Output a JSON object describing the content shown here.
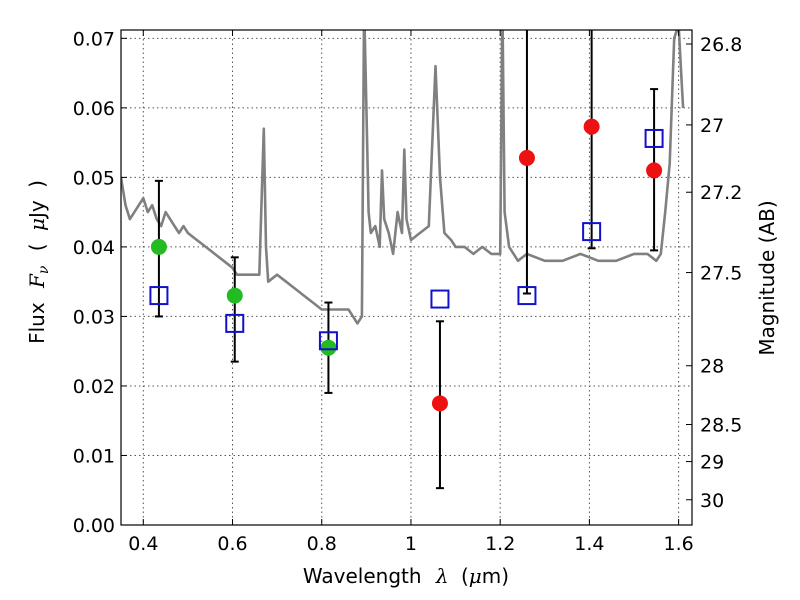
{
  "chart_data": {
    "type": "scatter",
    "title": "",
    "xlabel_parts": [
      "Wavelength",
      "λ",
      "(",
      "μ",
      "m)"
    ],
    "ylabel_parts": [
      "Flux",
      "F",
      "ν",
      "(",
      "μ",
      "Jy",
      ")"
    ],
    "right_ylabel": "Magnitude (AB)",
    "xlim": [
      0.35,
      1.63
    ],
    "ylim": [
      0.0,
      0.0712
    ],
    "grid": true,
    "x_ticks": [
      {
        "v": 0.4,
        "label": "0.4"
      },
      {
        "v": 0.6,
        "label": "0.6"
      },
      {
        "v": 0.8,
        "label": "0.8"
      },
      {
        "v": 1.0,
        "label": "1"
      },
      {
        "v": 1.2,
        "label": "1.2"
      },
      {
        "v": 1.4,
        "label": "1.4"
      },
      {
        "v": 1.6,
        "label": "1.6"
      }
    ],
    "y_ticks": [
      {
        "v": 0.0,
        "label": "0.00"
      },
      {
        "v": 0.01,
        "label": "0.01"
      },
      {
        "v": 0.02,
        "label": "0.02"
      },
      {
        "v": 0.03,
        "label": "0.03"
      },
      {
        "v": 0.04,
        "label": "0.04"
      },
      {
        "v": 0.05,
        "label": "0.05"
      },
      {
        "v": 0.06,
        "label": "0.06"
      },
      {
        "v": 0.07,
        "label": "0.07"
      }
    ],
    "mag_ticks": [
      {
        "v": 26.8,
        "label": "26.8"
      },
      {
        "v": 27.0,
        "label": "27"
      },
      {
        "v": 27.2,
        "label": "27.2"
      },
      {
        "v": 27.5,
        "label": "27.5"
      },
      {
        "v": 28.0,
        "label": "28"
      },
      {
        "v": 28.5,
        "label": "28.5"
      },
      {
        "v": 29.0,
        "label": "29"
      },
      {
        "v": 30.0,
        "label": "30"
      }
    ],
    "series": [
      {
        "name": "template-spectrum",
        "kind": "line",
        "color": "#808080",
        "x": [
          0.35,
          0.36,
          0.37,
          0.38,
          0.39,
          0.4,
          0.41,
          0.42,
          0.43,
          0.44,
          0.45,
          0.46,
          0.47,
          0.48,
          0.49,
          0.5,
          0.52,
          0.54,
          0.56,
          0.58,
          0.6,
          0.61,
          0.62,
          0.64,
          0.66,
          0.67,
          0.675,
          0.68,
          0.7,
          0.72,
          0.74,
          0.76,
          0.78,
          0.8,
          0.82,
          0.84,
          0.86,
          0.87,
          0.88,
          0.89,
          0.895,
          0.9,
          0.905,
          0.91,
          0.92,
          0.93,
          0.935,
          0.94,
          0.95,
          0.96,
          0.97,
          0.98,
          0.985,
          0.99,
          1.0,
          1.02,
          1.04,
          1.055,
          1.065,
          1.075,
          1.09,
          1.1,
          1.12,
          1.14,
          1.16,
          1.18,
          1.2,
          1.205,
          1.21,
          1.22,
          1.24,
          1.26,
          1.3,
          1.34,
          1.38,
          1.42,
          1.46,
          1.5,
          1.53,
          1.55,
          1.56,
          1.57,
          1.58,
          1.59,
          1.6,
          1.605,
          1.61
        ],
        "values": [
          0.05,
          0.046,
          0.044,
          0.045,
          0.046,
          0.047,
          0.045,
          0.046,
          0.044,
          0.043,
          0.045,
          0.044,
          0.043,
          0.042,
          0.043,
          0.042,
          0.041,
          0.04,
          0.039,
          0.038,
          0.037,
          0.036,
          0.036,
          0.036,
          0.036,
          0.057,
          0.04,
          0.035,
          0.036,
          0.035,
          0.034,
          0.033,
          0.032,
          0.031,
          0.031,
          0.031,
          0.031,
          0.03,
          0.029,
          0.03,
          0.075,
          0.06,
          0.045,
          0.042,
          0.043,
          0.04,
          0.051,
          0.044,
          0.042,
          0.039,
          0.045,
          0.042,
          0.054,
          0.044,
          0.041,
          0.042,
          0.043,
          0.066,
          0.05,
          0.042,
          0.041,
          0.04,
          0.04,
          0.039,
          0.04,
          0.039,
          0.039,
          0.075,
          0.045,
          0.04,
          0.038,
          0.039,
          0.038,
          0.038,
          0.039,
          0.038,
          0.038,
          0.039,
          0.039,
          0.038,
          0.039,
          0.045,
          0.052,
          0.07,
          0.072,
          0.066,
          0.06
        ]
      },
      {
        "name": "observed-green",
        "kind": "circle",
        "color": "#22bb22",
        "x": [
          0.435,
          0.605,
          0.815
        ],
        "values": [
          0.04,
          0.033,
          0.0255
        ],
        "err_low": [
          0.03,
          0.0235,
          0.019
        ],
        "err_high": [
          0.0495,
          0.0385,
          0.032
        ]
      },
      {
        "name": "observed-red",
        "kind": "circle",
        "color": "#ee1111",
        "x": [
          1.065,
          1.26,
          1.405,
          1.545
        ],
        "values": [
          0.0175,
          0.0528,
          0.0573,
          0.051
        ],
        "err_low": [
          0.0053,
          0.0333,
          0.0398,
          0.0395
        ],
        "err_high": [
          0.0293,
          0.075,
          0.075,
          0.0627
        ]
      },
      {
        "name": "model-photometry",
        "kind": "square",
        "color": "#1111cc",
        "x": [
          0.435,
          0.605,
          0.815,
          1.065,
          1.26,
          1.405,
          1.545
        ],
        "values": [
          0.033,
          0.029,
          0.0265,
          0.0325,
          0.033,
          0.0422,
          0.0556
        ]
      }
    ]
  }
}
